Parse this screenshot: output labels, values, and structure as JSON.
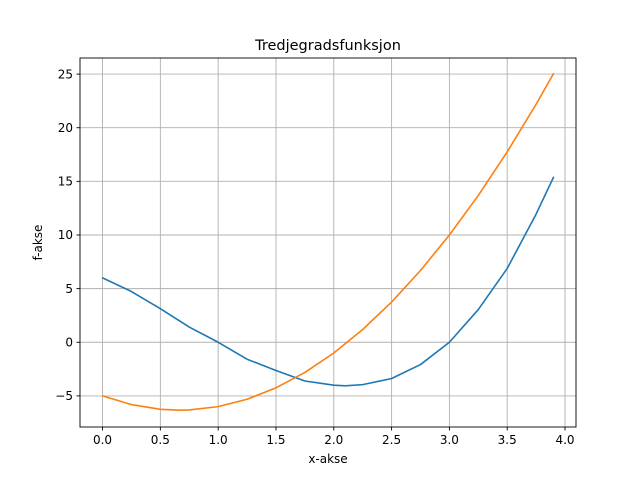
{
  "chart_data": {
    "type": "line",
    "title": "Tredjegradsfunksjon",
    "xlabel": "x-akse",
    "ylabel": "f-akse",
    "xlim": [
      -0.195,
      4.095
    ],
    "ylim": [
      -7.9,
      26.5
    ],
    "xticks": [
      0.0,
      0.5,
      1.0,
      1.5,
      2.0,
      2.5,
      3.0,
      3.5,
      4.0
    ],
    "xtick_labels": [
      "0.0",
      "0.5",
      "1.0",
      "1.5",
      "2.0",
      "2.5",
      "3.0",
      "3.5",
      "4.0"
    ],
    "yticks": [
      -5,
      0,
      5,
      10,
      15,
      20,
      25
    ],
    "ytick_labels": [
      "−5",
      "0",
      "5",
      "10",
      "15",
      "20",
      "25"
    ],
    "grid": true,
    "series": [
      {
        "color": "#1f77b4",
        "x": [
          0.0,
          0.25,
          0.5,
          0.75,
          1.0,
          1.25,
          1.5,
          1.75,
          2.0,
          2.1,
          2.25,
          2.5,
          2.75,
          3.0,
          3.25,
          3.5,
          3.75,
          3.9
        ],
        "y": [
          6.0,
          4.73,
          3.13,
          1.42,
          0.0,
          -1.58,
          -2.63,
          -3.61,
          -4.0,
          -4.06,
          -3.95,
          -3.38,
          -2.08,
          0.0,
          3.05,
          6.88,
          11.95,
          15.37
        ]
      },
      {
        "color": "#ff7f0e",
        "x": [
          0.0,
          0.25,
          0.5,
          0.67,
          0.75,
          1.0,
          1.25,
          1.5,
          1.75,
          2.0,
          2.25,
          2.5,
          2.75,
          3.0,
          3.25,
          3.5,
          3.75,
          3.9
        ],
        "y": [
          -5.0,
          -5.81,
          -6.25,
          -6.33,
          -6.31,
          -6.0,
          -5.31,
          -4.25,
          -2.81,
          -1.0,
          1.19,
          3.75,
          6.69,
          10.0,
          13.69,
          17.75,
          22.19,
          25.03
        ]
      }
    ]
  }
}
